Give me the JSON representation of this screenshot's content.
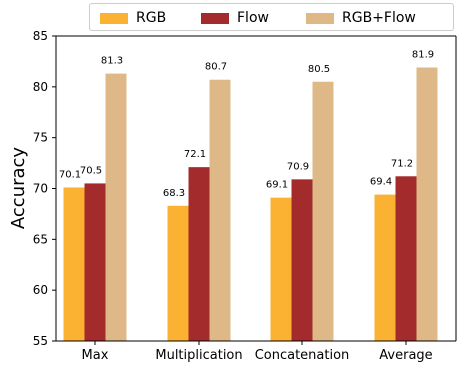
{
  "chart_data": {
    "type": "bar",
    "title": "",
    "xlabel": "",
    "ylabel": "Accuracy",
    "ylim": [
      55,
      85
    ],
    "yticks": [
      55,
      60,
      65,
      70,
      75,
      80,
      85
    ],
    "grid": false,
    "legend_position": "top",
    "categories": [
      "Max",
      "Multiplication",
      "Concatenation",
      "Average"
    ],
    "series": [
      {
        "name": "RGB",
        "color": "#fbb232",
        "values": [
          70.1,
          68.3,
          69.1,
          69.4
        ],
        "labels": [
          "70.1",
          "68.3",
          "69.1",
          "69.4"
        ]
      },
      {
        "name": "Flow",
        "color": "#a42b2b",
        "values": [
          70.5,
          72.1,
          70.9,
          71.2
        ],
        "labels": [
          "70.5",
          "72.1",
          "70.9",
          "71.2"
        ]
      },
      {
        "name": "RGB+Flow",
        "color": "#deb887",
        "values": [
          81.3,
          80.7,
          80.5,
          81.9
        ],
        "labels": [
          "81.3",
          "80.7",
          "80.5",
          "81.9"
        ]
      }
    ]
  }
}
